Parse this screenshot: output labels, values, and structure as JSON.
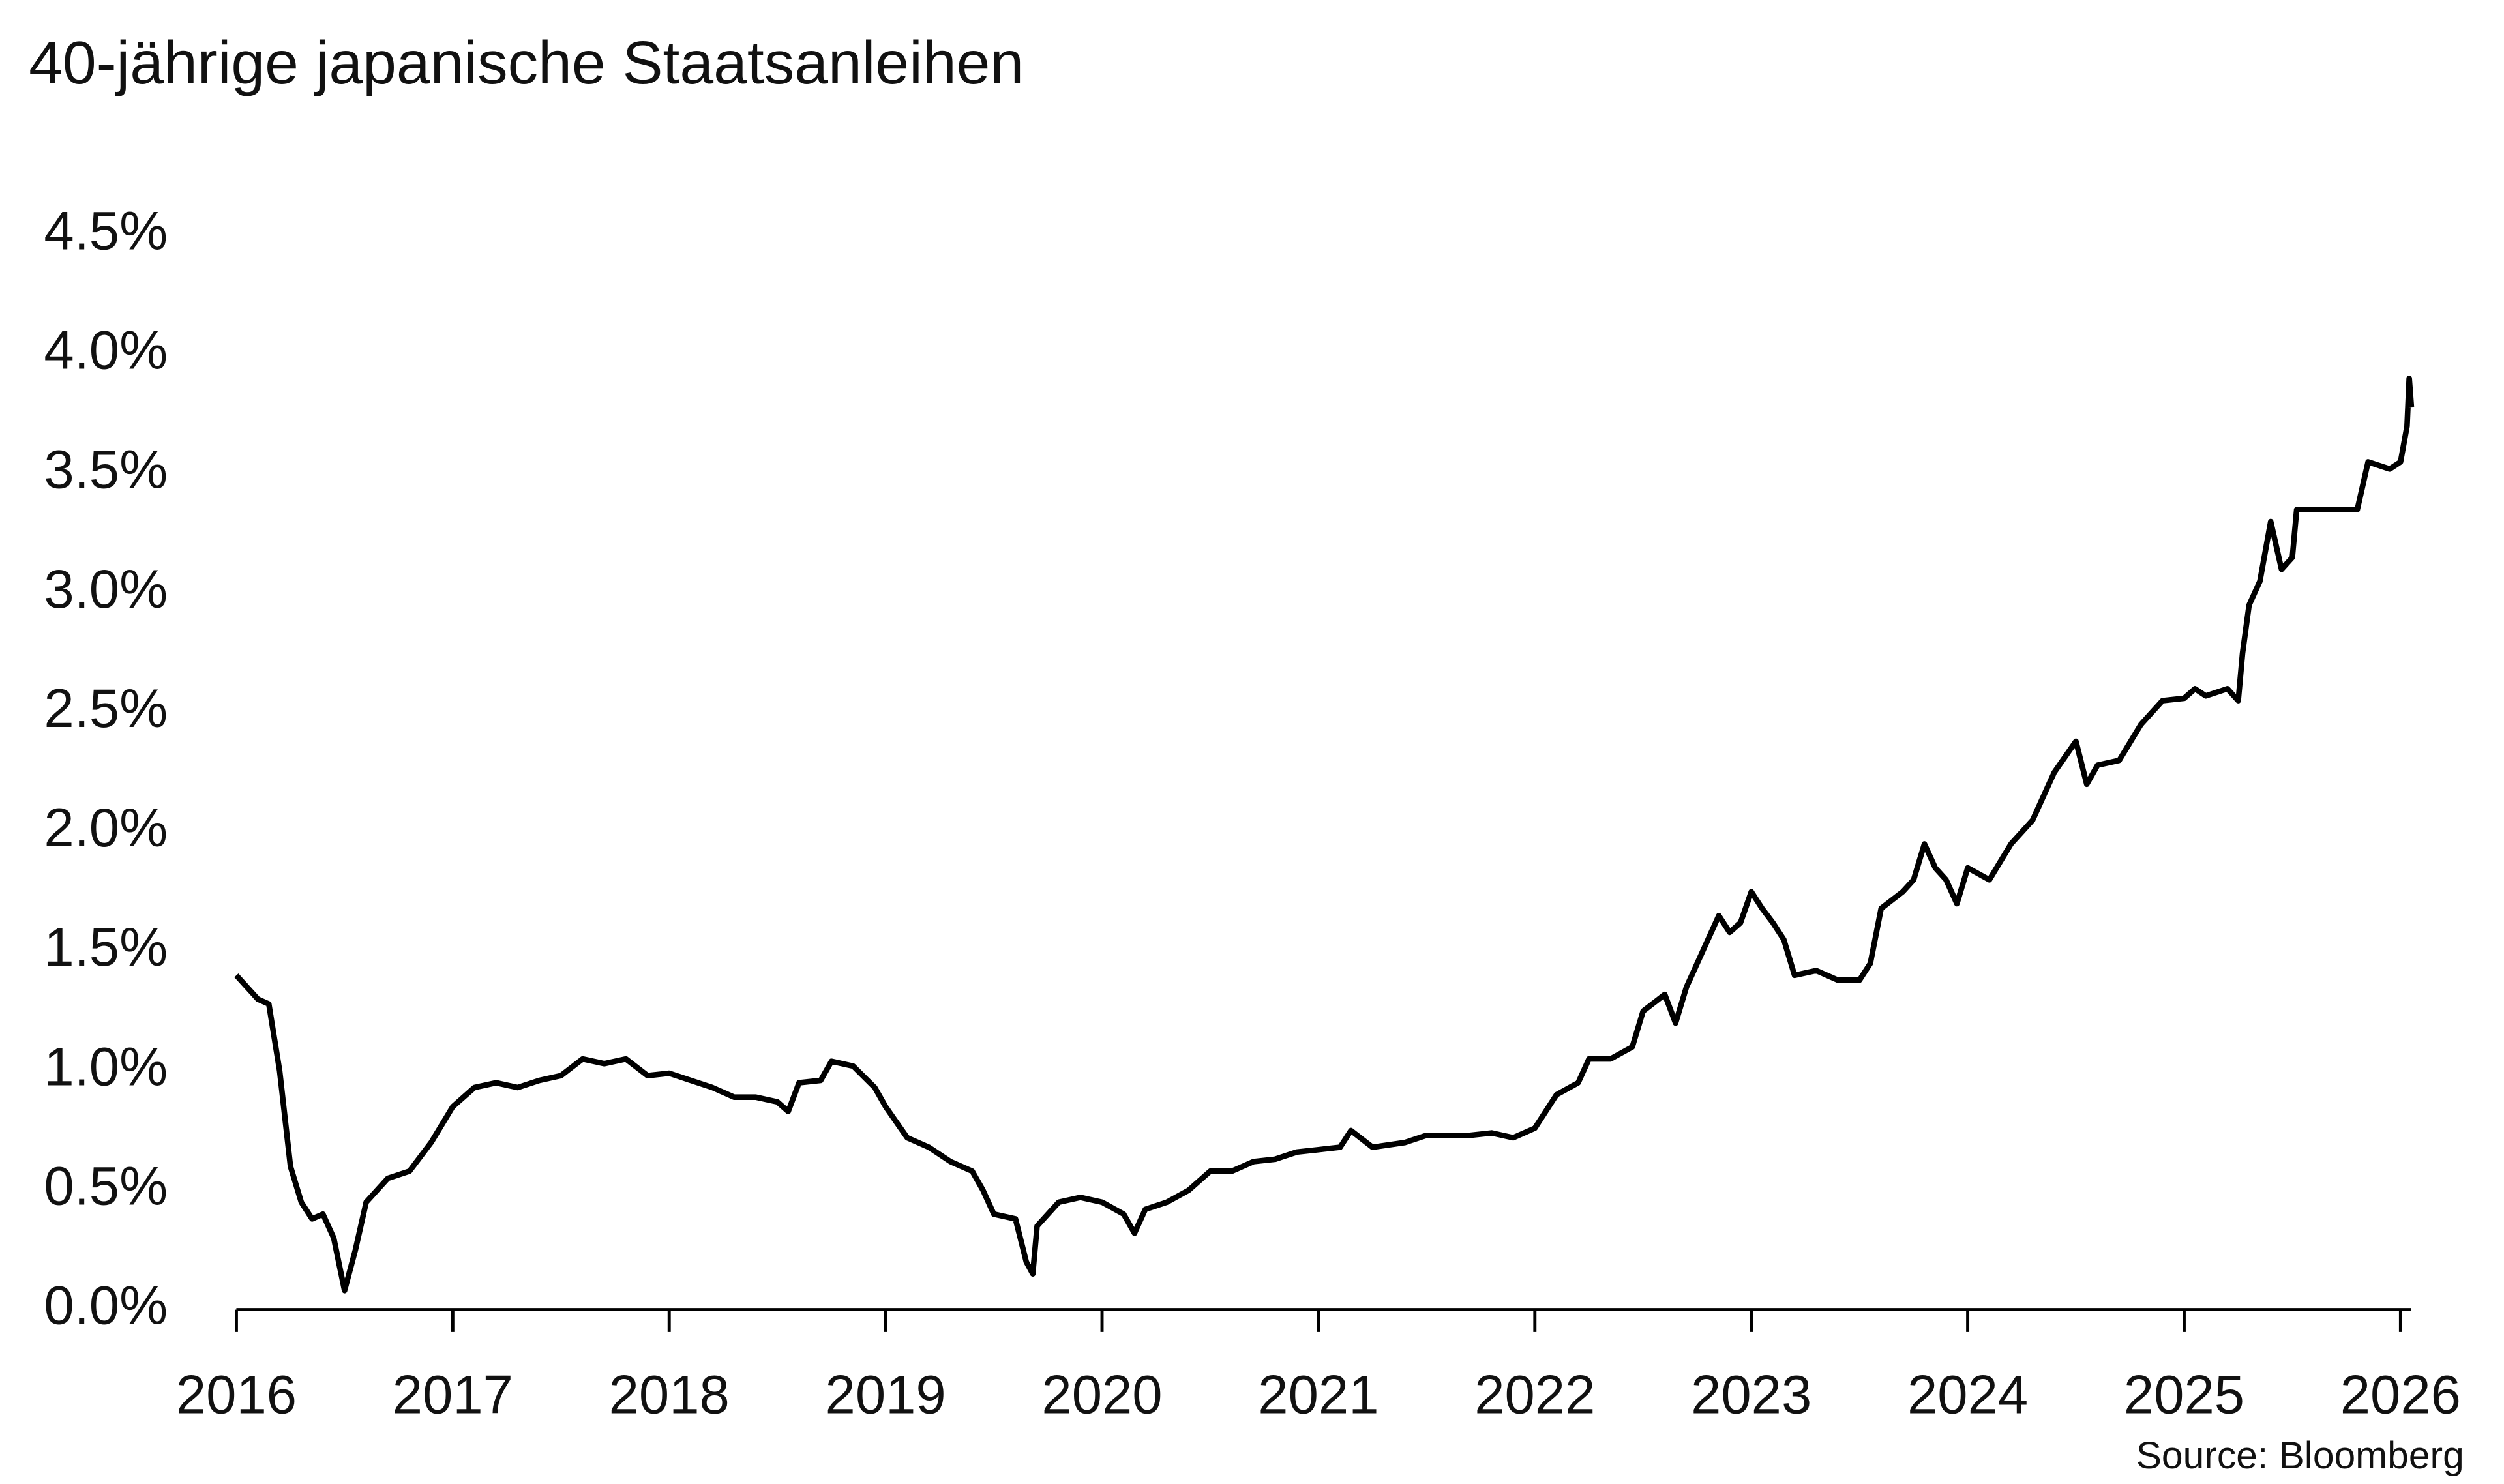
{
  "chart_data": {
    "type": "line",
    "title": "40-jährige japanische Staatsanleihen",
    "source": "Source: Bloomberg",
    "x": [
      2016.0,
      2016.1,
      2016.15,
      2016.2,
      2016.25,
      2016.3,
      2016.35,
      2016.4,
      2016.45,
      2016.5,
      2016.55,
      2016.6,
      2016.7,
      2016.8,
      2016.9,
      2017.0,
      2017.1,
      2017.2,
      2017.3,
      2017.4,
      2017.5,
      2017.6,
      2017.7,
      2017.8,
      2017.9,
      2018.0,
      2018.1,
      2018.2,
      2018.3,
      2018.4,
      2018.5,
      2018.55,
      2018.6,
      2018.7,
      2018.75,
      2018.85,
      2018.95,
      2019.0,
      2019.1,
      2019.2,
      2019.3,
      2019.4,
      2019.45,
      2019.5,
      2019.6,
      2019.65,
      2019.68,
      2019.7,
      2019.8,
      2019.9,
      2020.0,
      2020.1,
      2020.15,
      2020.2,
      2020.3,
      2020.4,
      2020.5,
      2020.6,
      2020.7,
      2020.8,
      2020.9,
      2021.0,
      2021.1,
      2021.15,
      2021.25,
      2021.4,
      2021.5,
      2021.6,
      2021.7,
      2021.8,
      2021.9,
      2022.0,
      2022.1,
      2022.2,
      2022.25,
      2022.35,
      2022.45,
      2022.5,
      2022.6,
      2022.65,
      2022.7,
      2022.75,
      2022.8,
      2022.85,
      2022.9,
      2022.95,
      2023.0,
      2023.05,
      2023.1,
      2023.15,
      2023.2,
      2023.3,
      2023.4,
      2023.5,
      2023.55,
      2023.6,
      2023.7,
      2023.75,
      2023.8,
      2023.85,
      2023.9,
      2023.95,
      2024.0,
      2024.1,
      2024.2,
      2024.3,
      2024.4,
      2024.5,
      2024.55,
      2024.6,
      2024.7,
      2024.8,
      2024.9,
      2025.0,
      2025.05,
      2025.1,
      2025.2,
      2025.25,
      2025.27,
      2025.3,
      2025.35,
      2025.4,
      2025.45,
      2025.5,
      2025.52,
      2025.6,
      2025.7,
      2025.8,
      2025.85,
      2025.95,
      2026.0,
      2026.03,
      2026.04,
      2026.05
    ],
    "series": [
      {
        "color": "#000000",
        "values": [
          1.4,
          1.3,
          1.28,
          1.0,
          0.6,
          0.45,
          0.38,
          0.4,
          0.3,
          0.08,
          0.25,
          0.45,
          0.55,
          0.58,
          0.7,
          0.85,
          0.93,
          0.95,
          0.93,
          0.96,
          0.98,
          1.05,
          1.03,
          1.05,
          0.98,
          0.99,
          0.96,
          0.93,
          0.89,
          0.89,
          0.87,
          0.83,
          0.95,
          0.96,
          1.04,
          1.02,
          0.93,
          0.85,
          0.72,
          0.68,
          0.62,
          0.58,
          0.5,
          0.4,
          0.38,
          0.2,
          0.15,
          0.35,
          0.45,
          0.47,
          0.45,
          0.4,
          0.32,
          0.42,
          0.45,
          0.5,
          0.58,
          0.58,
          0.62,
          0.63,
          0.66,
          0.67,
          0.68,
          0.75,
          0.68,
          0.7,
          0.73,
          0.73,
          0.73,
          0.74,
          0.72,
          0.76,
          0.9,
          0.95,
          1.05,
          1.05,
          1.1,
          1.25,
          1.32,
          1.2,
          1.35,
          1.45,
          1.55,
          1.65,
          1.58,
          1.62,
          1.75,
          1.68,
          1.62,
          1.55,
          1.4,
          1.42,
          1.38,
          1.38,
          1.45,
          1.68,
          1.75,
          1.8,
          1.95,
          1.85,
          1.8,
          1.7,
          1.85,
          1.8,
          1.95,
          2.05,
          2.25,
          2.38,
          2.2,
          2.28,
          2.3,
          2.45,
          2.55,
          2.56,
          2.6,
          2.57,
          2.6,
          2.55,
          2.75,
          2.95,
          3.05,
          3.3,
          3.1,
          3.15,
          3.35,
          3.35,
          3.35,
          3.35,
          3.55,
          3.52,
          3.55,
          3.7,
          3.9,
          3.78
        ]
      }
    ],
    "xlim": [
      2016,
      2026.05
    ],
    "xticks": [
      2016,
      2017,
      2018,
      2019,
      2020,
      2021,
      2022,
      2023,
      2024,
      2025,
      2026
    ],
    "ylim": [
      0,
      4.5
    ],
    "yticks": [
      {
        "value": 0,
        "label": "0.0%"
      },
      {
        "value": 0.5,
        "label": "0.5%"
      },
      {
        "value": 1,
        "label": "1.0%"
      },
      {
        "value": 1.5,
        "label": "1.5%"
      },
      {
        "value": 2,
        "label": "2.0%"
      },
      {
        "value": 2.5,
        "label": "2.5%"
      },
      {
        "value": 3,
        "label": "3.0%"
      },
      {
        "value": 3.5,
        "label": "3.5%"
      },
      {
        "value": 4,
        "label": "4.0%"
      },
      {
        "value": 4.5,
        "label": "4.5%"
      }
    ],
    "grid": false
  }
}
